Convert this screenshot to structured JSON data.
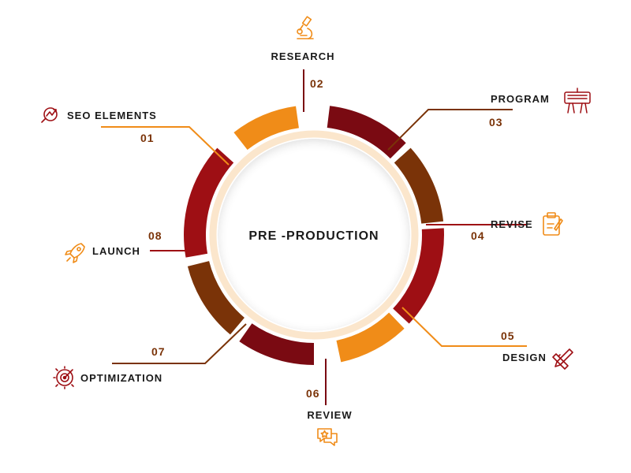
{
  "center": {
    "title": "PRE -PRODUCTION"
  },
  "colors": {
    "maroon": "#7a0a12",
    "red": "#9e0f14",
    "brown": "#7a3308",
    "orange": "#f08c18",
    "ring": "#fbe6cc"
  },
  "steps": [
    {
      "number": "01",
      "label": "SEO ELEMENTS",
      "icon": "seo-chart-magnifier-icon"
    },
    {
      "number": "02",
      "label": "RESEARCH",
      "icon": "microscope-icon"
    },
    {
      "number": "03",
      "label": "PROGRAM",
      "icon": "keyboard-hands-icon"
    },
    {
      "number": "04",
      "label": "REVISE",
      "icon": "clipboard-pencil-icon"
    },
    {
      "number": "05",
      "label": "DESIGN",
      "icon": "pencil-ruler-icon"
    },
    {
      "number": "06",
      "label": "REVIEW",
      "icon": "chat-star-icon"
    },
    {
      "number": "07",
      "label": "OPTIMIZATION",
      "icon": "gear-target-icon"
    },
    {
      "number": "08",
      "label": "LAUNCH",
      "icon": "rocket-icon"
    }
  ]
}
